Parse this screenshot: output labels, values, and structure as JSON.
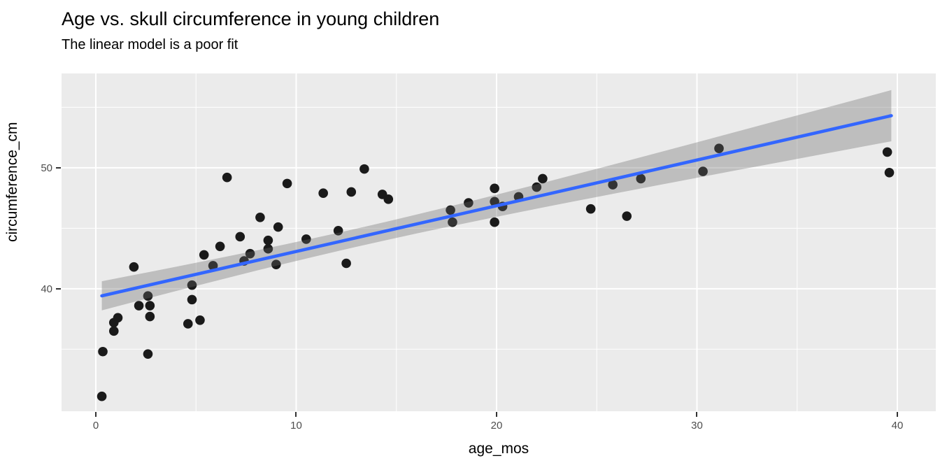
{
  "title": "Age vs. skull circumference in young children",
  "subtitle": "The linear model is a poor fit",
  "chart_data": {
    "type": "scatter",
    "title": "Age vs. skull circumference in young children",
    "subtitle": "The linear model is a poor fit",
    "xlabel": "age_mos",
    "ylabel": "circumference_cm",
    "xlim": [
      -1.71,
      41.92
    ],
    "ylim": [
      29.87,
      57.8
    ],
    "x_major_ticks": [
      0,
      10,
      20,
      30,
      40
    ],
    "x_minor_gridlines": [
      5,
      15,
      25,
      35
    ],
    "y_major_ticks": [
      40,
      50
    ],
    "y_minor_gridlines": [
      35,
      45,
      55
    ],
    "grid": "on",
    "legend": "none",
    "points": [
      [
        0.3,
        31.1
      ],
      [
        0.35,
        34.8
      ],
      [
        0.9,
        37.2
      ],
      [
        0.9,
        36.5
      ],
      [
        1.1,
        37.6
      ],
      [
        1.9,
        41.8
      ],
      [
        2.15,
        38.6
      ],
      [
        2.6,
        39.4
      ],
      [
        2.6,
        34.6
      ],
      [
        2.7,
        38.6
      ],
      [
        2.7,
        37.7
      ],
      [
        4.6,
        37.1
      ],
      [
        4.8,
        40.3
      ],
      [
        4.8,
        39.1
      ],
      [
        5.2,
        37.4
      ],
      [
        5.4,
        42.8
      ],
      [
        5.85,
        41.9
      ],
      [
        6.2,
        43.5
      ],
      [
        6.55,
        49.2
      ],
      [
        7.2,
        44.3
      ],
      [
        7.4,
        42.3
      ],
      [
        7.7,
        42.9
      ],
      [
        8.2,
        45.9
      ],
      [
        8.6,
        44.0
      ],
      [
        8.6,
        43.3
      ],
      [
        9.0,
        42.0
      ],
      [
        9.1,
        45.1
      ],
      [
        9.55,
        48.7
      ],
      [
        10.5,
        44.1
      ],
      [
        11.35,
        47.9
      ],
      [
        12.1,
        44.8
      ],
      [
        12.5,
        42.1
      ],
      [
        12.75,
        48.0
      ],
      [
        13.4,
        49.9
      ],
      [
        14.3,
        47.8
      ],
      [
        14.6,
        47.4
      ],
      [
        17.7,
        46.5
      ],
      [
        17.8,
        45.5
      ],
      [
        18.6,
        47.1
      ],
      [
        19.9,
        48.3
      ],
      [
        19.9,
        47.2
      ],
      [
        19.9,
        45.5
      ],
      [
        20.3,
        46.8
      ],
      [
        21.1,
        47.6
      ],
      [
        22.0,
        48.4
      ],
      [
        22.3,
        49.1
      ],
      [
        24.7,
        46.6
      ],
      [
        25.8,
        48.6
      ],
      [
        26.5,
        46.0
      ],
      [
        27.2,
        49.1
      ],
      [
        30.3,
        49.7
      ],
      [
        31.1,
        51.6
      ],
      [
        39.5,
        51.3
      ],
      [
        39.6,
        49.6
      ]
    ],
    "trend_line": {
      "model": "linear",
      "intercept": 39.3,
      "slope": 0.378,
      "x_start": 0.3,
      "x_end": 39.7,
      "y_start": 39.41,
      "y_end": 54.31
    },
    "confidence_band": {
      "center_x": 13,
      "half_width_min": 0.75,
      "spread_coeff": 0.0055,
      "half_width_at_x_start": 1.2,
      "half_width_at_x_end": 2.12
    }
  },
  "colors": {
    "panel_background": "#EBEBEB",
    "gridline": "#FFFFFF",
    "point": "#1A1A1A",
    "trend_line": "#3366FF",
    "confidence_band": "rgba(102,102,102,0.34)",
    "tick_label": "#4D4D4D",
    "tick_mark": "#333333",
    "text": "#000000"
  }
}
